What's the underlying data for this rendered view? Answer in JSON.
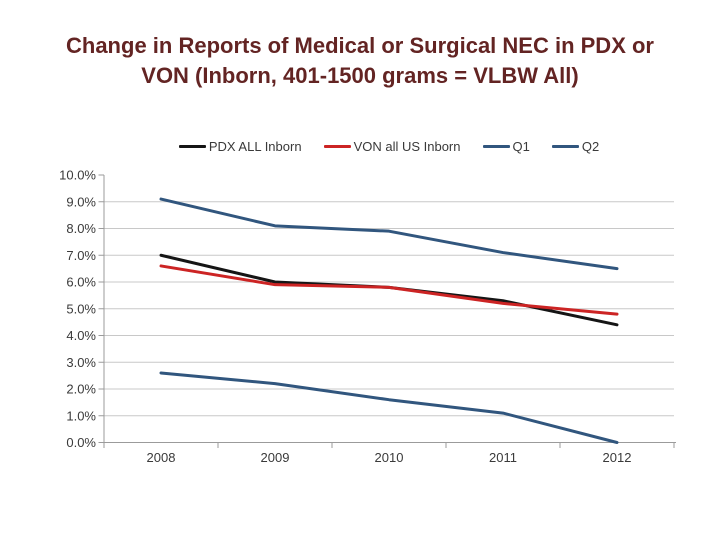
{
  "slide": {
    "title_line1": "Change in Reports of Medical or Surgical NEC in PDX or",
    "title_line2": "VON (Inborn, 401-1500 grams = VLBW All)",
    "title_color": "#632423"
  },
  "colors": {
    "background": "#ffffff",
    "gridline": "#c8c8c8",
    "axis_line": "#9b9b9b",
    "tick_text": "#3a3a3a"
  },
  "chart_data": {
    "type": "line",
    "title": "",
    "xlabel": "",
    "ylabel": "",
    "categories": [
      "2008",
      "2009",
      "2010",
      "2011",
      "2012"
    ],
    "series": [
      {
        "name": "PDX ALL Inborn",
        "color": "#151515",
        "values": [
          7.0,
          6.0,
          5.8,
          5.3,
          4.4
        ]
      },
      {
        "name": "VON all US Inborn",
        "color": "#cc2424",
        "values": [
          6.6,
          5.9,
          5.8,
          5.2,
          4.8
        ]
      },
      {
        "name": "Q1",
        "color": "#31567e",
        "values": [
          9.1,
          8.1,
          7.9,
          7.1,
          6.5
        ]
      },
      {
        "name": "Q2",
        "color": "#31567e",
        "values": [
          2.6,
          2.2,
          1.6,
          1.1,
          0.0
        ]
      }
    ],
    "ylim": [
      0,
      10
    ],
    "ytick_step": 1,
    "ytick_labels": [
      "10.0%",
      "9.0%",
      "8.0%",
      "7.0%",
      "6.0%",
      "5.0%",
      "4.0%",
      "3.0%",
      "2.0%",
      "1.0%",
      "0.0%"
    ],
    "grid": true,
    "legend_position": "top",
    "value_unit": "percent"
  }
}
